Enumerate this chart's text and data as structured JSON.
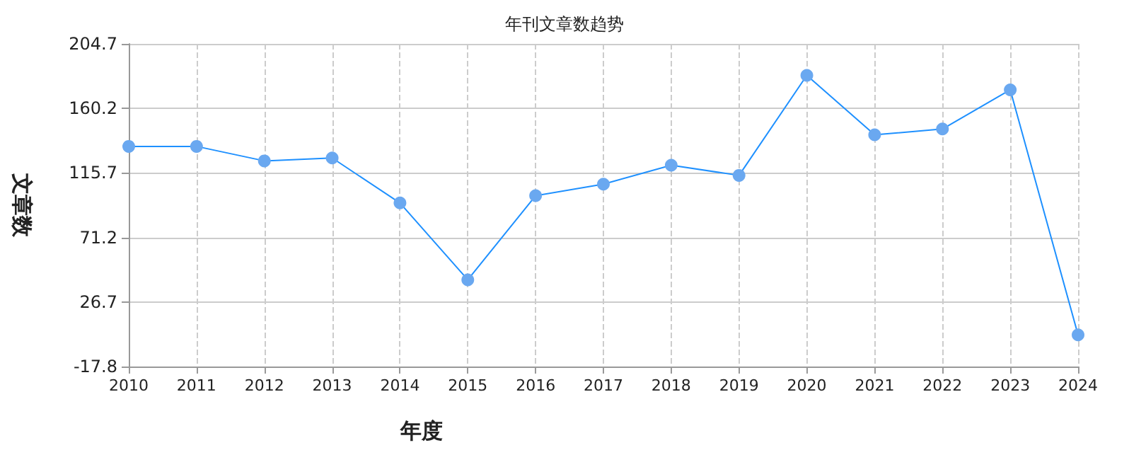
{
  "chart_data": {
    "type": "line",
    "title": "年刊文章数趋势",
    "xlabel": "年度",
    "ylabel": "文章数",
    "categories": [
      "2010",
      "2011",
      "2012",
      "2013",
      "2014",
      "2015",
      "2016",
      "2017",
      "2018",
      "2019",
      "2020",
      "2021",
      "2022",
      "2023",
      "2024"
    ],
    "series": [
      {
        "color": "#1e90ff",
        "values": [
          134,
          134,
          124,
          126,
          95,
          42,
          100,
          108,
          121,
          114,
          183,
          142,
          146,
          173,
          4
        ]
      }
    ],
    "ylim": [
      -17.8,
      204.7
    ],
    "yticks": [
      -17.8,
      26.7,
      71.2,
      115.7,
      160.2,
      204.7
    ],
    "grid": true,
    "marker": "circle",
    "line_style": "solid"
  }
}
